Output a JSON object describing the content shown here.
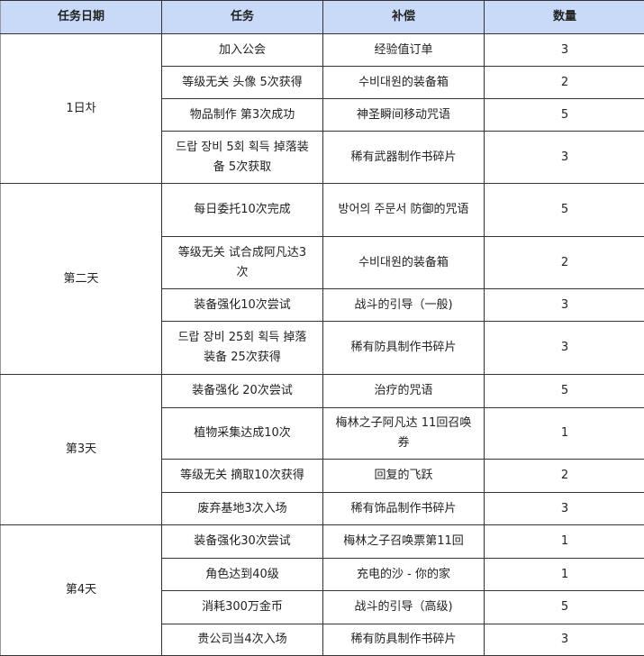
{
  "header": {
    "date": "任务日期",
    "task": "任务",
    "reward": "补偿",
    "qty": "数量"
  },
  "colors": {
    "header_bg": "#c9daf8",
    "border": "#333333"
  },
  "groups": [
    {
      "day": "1日차",
      "rows": [
        {
          "task": "加入公会",
          "reward": "经验值订单",
          "qty": "3"
        },
        {
          "task": "等级无关 头像 5次获得",
          "reward": "수비대원的装备箱",
          "qty": "2"
        },
        {
          "task": "物品制作 第3次成功",
          "reward": "神圣瞬间移动咒语",
          "qty": "5"
        },
        {
          "task": "드랍 장비 5회 획득 掉落装备 5次获取",
          "reward": "稀有武器制作书碎片",
          "qty": "3"
        }
      ]
    },
    {
      "day": "第二天",
      "rows": [
        {
          "task": "每日委托10次完成",
          "reward": "방어의 주문서 防御的咒语",
          "qty": "5"
        },
        {
          "task": "等级无关 试合成阿凡达3次",
          "reward": "수비대원的装备箱",
          "qty": "2"
        },
        {
          "task": "装备强化10次尝试",
          "reward": "战斗的引导（一般)",
          "qty": "3"
        },
        {
          "task": "드랍 장비 25회 획득 掉落装备 25次获得",
          "reward": "稀有防具制作书碎片",
          "qty": "3"
        }
      ]
    },
    {
      "day": "第3天",
      "rows": [
        {
          "task": "装备强化 20次尝试",
          "reward": "治疗的咒语",
          "qty": "5"
        },
        {
          "task": "植物采集达成10次",
          "reward": "梅林之子阿凡达 11回召唤券",
          "qty": "1"
        },
        {
          "task": "等级无关 摘取10次获得",
          "reward": "回复的飞跃",
          "qty": "2"
        },
        {
          "task": "废弃基地3次入场",
          "reward": "稀有饰品制作书碎片",
          "qty": "3"
        }
      ]
    },
    {
      "day": "第4天",
      "rows": [
        {
          "task": "装备强化30次尝试",
          "reward": "梅林之子召唤票第11回",
          "qty": "1"
        },
        {
          "task": "角色达到40级",
          "reward": "充电的沙 - 你的家",
          "qty": "1"
        },
        {
          "task": "消耗300万金币",
          "reward": "战斗的引导（高级)",
          "qty": "5"
        },
        {
          "task": "贵公司当4次入场",
          "reward": "稀有防具制作书碎片",
          "qty": "3"
        }
      ]
    }
  ]
}
